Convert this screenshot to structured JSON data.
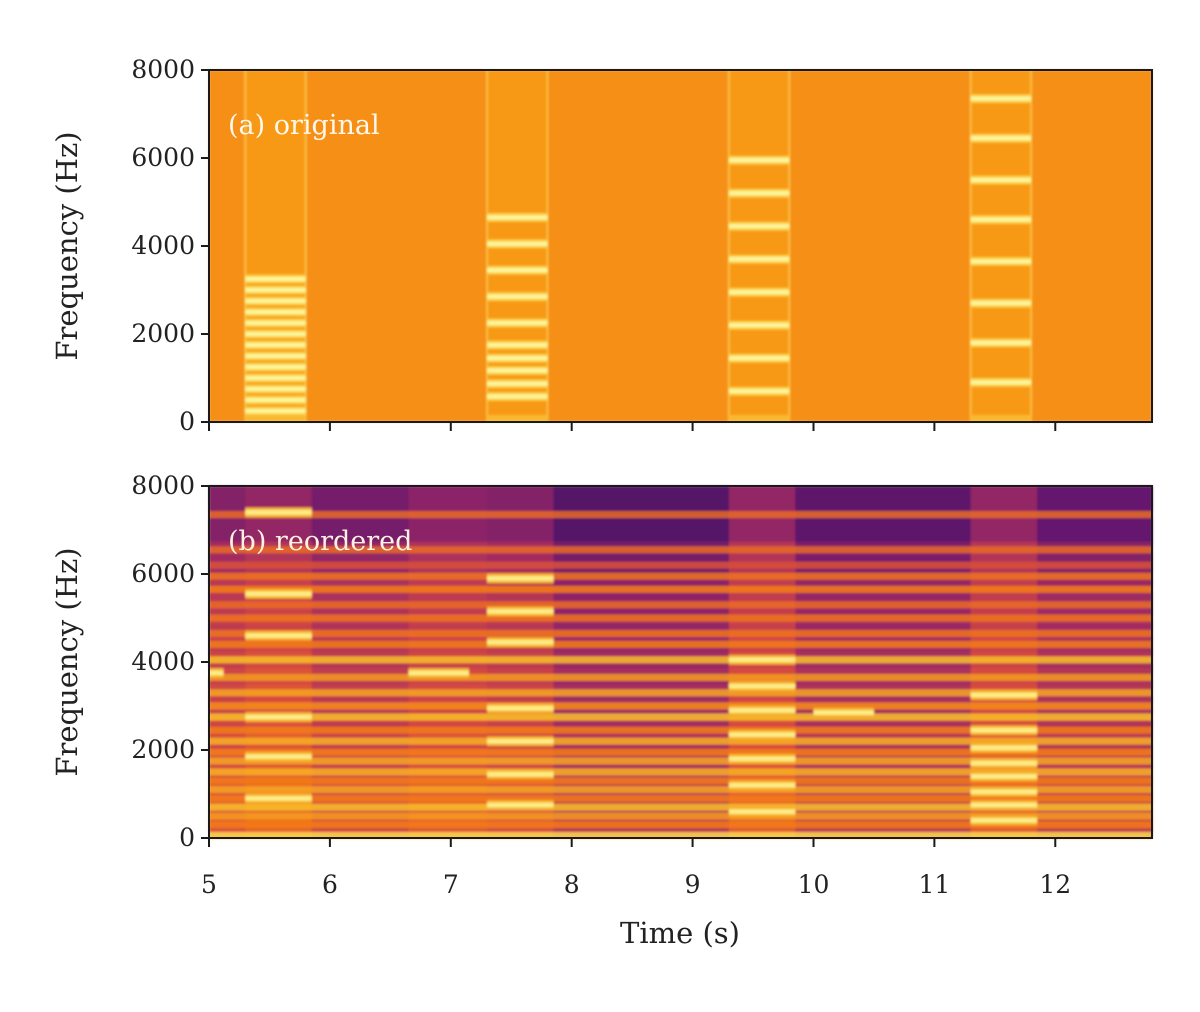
{
  "chart_data": [
    {
      "type": "heatmap",
      "panel_label": "(a) original",
      "xlabel": "",
      "ylabel": "Frequency (Hz)",
      "xlim": [
        5,
        12.8
      ],
      "ylim": [
        0,
        8000
      ],
      "xticks": [
        5,
        6,
        7,
        8,
        9,
        10,
        11,
        12
      ],
      "xtick_labels_shown": false,
      "yticks": [
        0,
        2000,
        4000,
        6000,
        8000
      ],
      "yticks_labels": [
        "0",
        "2000",
        "4000",
        "6000",
        "8000"
      ],
      "background_color": "#f68f12",
      "notes": [
        {
          "start": 5.3,
          "end": 5.8,
          "harmonics": [
            250,
            500,
            750,
            1000,
            1250,
            1500,
            1750,
            2000,
            2250,
            2500,
            2750,
            3000,
            3250
          ]
        },
        {
          "start": 7.3,
          "end": 7.8,
          "harmonics": [
            580,
            870,
            1170,
            1450,
            1750,
            2250,
            2850,
            3450,
            4050,
            4650
          ]
        },
        {
          "start": 9.3,
          "end": 9.8,
          "harmonics": [
            700,
            1450,
            2200,
            2950,
            3700,
            4450,
            5200,
            5950
          ]
        },
        {
          "start": 11.3,
          "end": 11.8,
          "harmonics": [
            900,
            1800,
            2700,
            3650,
            4600,
            5500,
            6450,
            7350
          ]
        }
      ]
    },
    {
      "type": "heatmap",
      "panel_label": "(b) reordered",
      "xlabel": "Time (s)",
      "ylabel": "Frequency (Hz)",
      "xlim": [
        5,
        12.8
      ],
      "ylim": [
        0,
        8000
      ],
      "xticks": [
        5,
        6,
        7,
        8,
        9,
        10,
        11,
        12
      ],
      "xticks_labels": [
        "5",
        "6",
        "7",
        "8",
        "9",
        "10",
        "11",
        "12"
      ],
      "yticks": [
        0,
        2000,
        4000,
        6000,
        8000
      ],
      "yticks_labels": [
        "0",
        "2000",
        "4000",
        "6000",
        "8000"
      ],
      "time_segments": [
        5.0,
        5.3,
        5.85,
        6.65,
        7.3,
        7.85,
        9.3,
        9.85,
        11.3,
        11.85,
        12.8
      ],
      "bands": [
        {
          "f": 60,
          "s": 0.9
        },
        {
          "f": 300,
          "s": 0.72
        },
        {
          "f": 500,
          "s": 0.78
        },
        {
          "f": 700,
          "s": 0.85
        },
        {
          "f": 900,
          "s": 0.72
        },
        {
          "f": 1100,
          "s": 0.8
        },
        {
          "f": 1300,
          "s": 0.72
        },
        {
          "f": 1500,
          "s": 0.82
        },
        {
          "f": 1750,
          "s": 0.8
        },
        {
          "f": 1950,
          "s": 0.72
        },
        {
          "f": 2200,
          "s": 0.82
        },
        {
          "f": 2450,
          "s": 0.72
        },
        {
          "f": 2750,
          "s": 0.85
        },
        {
          "f": 3000,
          "s": 0.75
        },
        {
          "f": 3300,
          "s": 0.8
        },
        {
          "f": 3650,
          "s": 0.78
        },
        {
          "f": 4050,
          "s": 0.85
        },
        {
          "f": 4400,
          "s": 0.72
        },
        {
          "f": 4650,
          "s": 0.7
        },
        {
          "f": 5000,
          "s": 0.7
        },
        {
          "f": 5300,
          "s": 0.68
        },
        {
          "f": 5650,
          "s": 0.72
        },
        {
          "f": 5950,
          "s": 0.7
        },
        {
          "f": 6200,
          "s": 0.62
        },
        {
          "f": 6550,
          "s": 0.68
        },
        {
          "f": 7350,
          "s": 0.68
        }
      ],
      "highlights": [
        {
          "start": 5.3,
          "end": 5.85,
          "freqs": [
            900,
            1850,
            2750,
            4600,
            5550,
            7400
          ]
        },
        {
          "start": 5.0,
          "end": 5.12,
          "freqs": [
            3750
          ]
        },
        {
          "start": 6.65,
          "end": 7.15,
          "freqs": [
            3750
          ]
        },
        {
          "start": 7.3,
          "end": 7.85,
          "freqs": [
            750,
            1450,
            2200,
            2950,
            4450,
            5150,
            5900
          ]
        },
        {
          "start": 9.3,
          "end": 9.85,
          "freqs": [
            600,
            1200,
            1800,
            2350,
            2900,
            3450,
            4050
          ]
        },
        {
          "start": 10.0,
          "end": 10.5,
          "freqs": [
            2850
          ]
        },
        {
          "start": 11.3,
          "end": 11.85,
          "freqs": [
            400,
            750,
            1050,
            1400,
            1700,
            2050,
            2450,
            3250
          ]
        }
      ]
    }
  ]
}
